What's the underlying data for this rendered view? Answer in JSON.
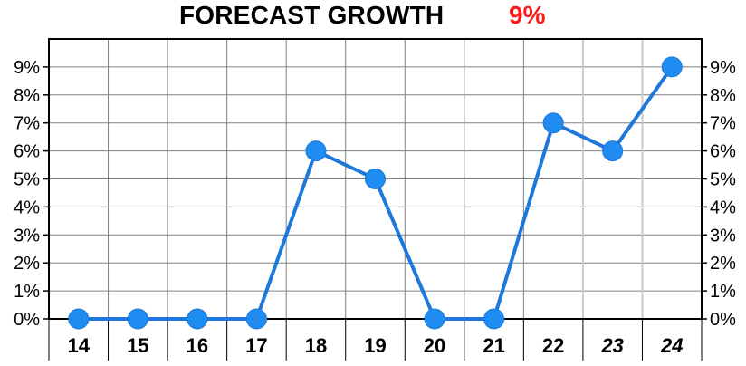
{
  "title": {
    "text": "FORECAST GROWTH",
    "value": "9%"
  },
  "colors": {
    "line": "#1e78dc",
    "marker": "#1e8cf0",
    "title_value": "#ff1a1a",
    "grid": "#808080",
    "forecast_grid": "#c8c8c8"
  },
  "chart_data": {
    "type": "line",
    "title": "FORECAST GROWTH",
    "headline_value": "9%",
    "categories": [
      "14",
      "15",
      "16",
      "17",
      "18",
      "19",
      "20",
      "21",
      "22",
      "23",
      "24"
    ],
    "forecast_categories": [
      "23",
      "24"
    ],
    "series": [
      {
        "values": [
          0,
          0,
          0,
          0,
          6,
          5,
          0,
          0,
          7,
          6,
          9
        ]
      }
    ],
    "ylim": [
      0,
      10
    ],
    "yticks": [
      "0%",
      "1%",
      "2%",
      "3%",
      "4%",
      "5%",
      "6%",
      "7%",
      "8%",
      "9%"
    ],
    "y_axis_sides": "left-and-right",
    "grid": true,
    "xlabel": "",
    "ylabel": ""
  }
}
